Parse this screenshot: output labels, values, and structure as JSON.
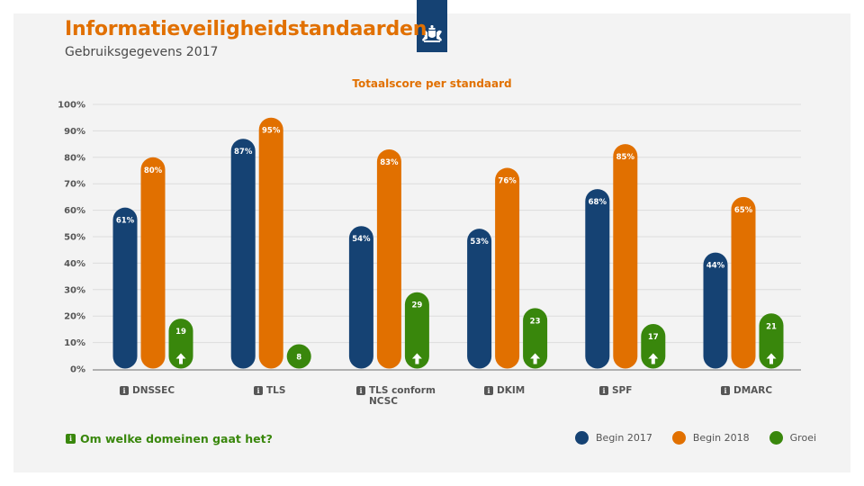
{
  "header": {
    "title": "Informatieveiligheidstandaarden",
    "subtitle": "Gebruiksgegevens 2017",
    "logo_icon": "rijksoverheid-coat-of-arms-icon"
  },
  "colors": {
    "begin2017": "#154273",
    "begin2018": "#e17000",
    "groei": "#39870c",
    "title": "#e17000",
    "grid": "#dcdcdc",
    "axis": "#9a9a9a",
    "tick_text": "#555555"
  },
  "chart_data": {
    "type": "bar",
    "title": "Totaalscore per standaard",
    "xlabel": "",
    "ylabel": "",
    "ylim": [
      0,
      100
    ],
    "y_ticks": [
      0,
      10,
      20,
      30,
      40,
      50,
      60,
      70,
      80,
      90,
      100
    ],
    "y_tick_labels": [
      "0%",
      "10%",
      "20%",
      "30%",
      "40%",
      "50%",
      "60%",
      "70%",
      "80%",
      "90%",
      "100%"
    ],
    "grid": true,
    "legend_position": "bottom-right",
    "categories": [
      "DNSSEC",
      "TLS",
      "TLS conform NCSC",
      "DKIM",
      "SPF",
      "DMARC"
    ],
    "category_labels": [
      [
        "DNSSEC"
      ],
      [
        "TLS"
      ],
      [
        "TLS conform",
        "NCSC"
      ],
      [
        "DKIM"
      ],
      [
        "SPF"
      ],
      [
        "DMARC"
      ]
    ],
    "series": [
      {
        "name": "Begin 2017",
        "key": "begin2017",
        "values": [
          61,
          87,
          54,
          53,
          68,
          44
        ],
        "labels": [
          "61%",
          "87%",
          "54%",
          "53%",
          "68%",
          "44%"
        ]
      },
      {
        "name": "Begin 2018",
        "key": "begin2018",
        "values": [
          80,
          95,
          83,
          76,
          85,
          65
        ],
        "labels": [
          "80%",
          "95%",
          "83%",
          "76%",
          "85%",
          "65%"
        ]
      },
      {
        "name": "Groei",
        "key": "groei",
        "values": [
          19,
          8,
          29,
          23,
          17,
          21
        ],
        "labels": [
          "19",
          "8",
          "29",
          "23",
          "17",
          "21"
        ]
      }
    ]
  },
  "footer": {
    "domains_link": "Om welke domeinen gaat het?",
    "info_glyph": "i"
  }
}
